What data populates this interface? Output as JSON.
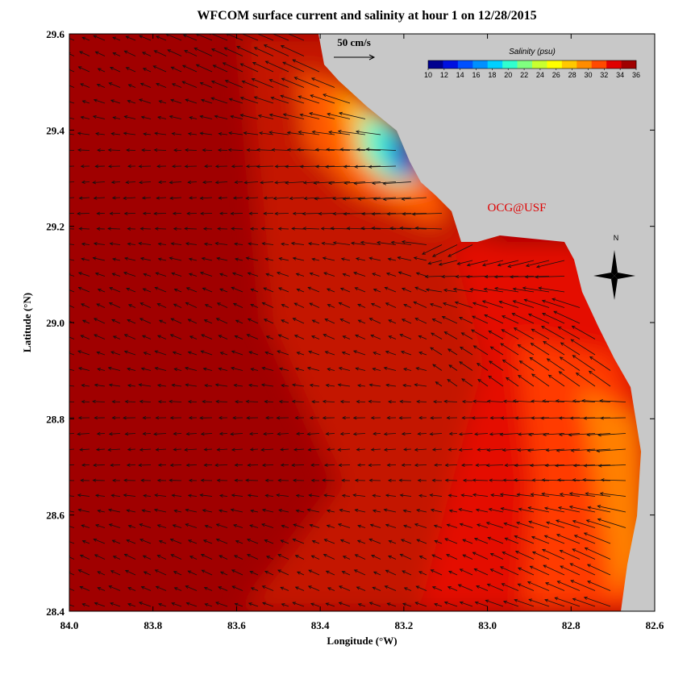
{
  "title": "WFCOM surface current and salinity at hour 1 on 12/28/2015",
  "x_axis": {
    "label": "Longitude (°W)",
    "lim": [
      84,
      82.6
    ],
    "ticks": [
      {
        "value": 84,
        "label": "84.0"
      },
      83.8,
      83.6,
      83.4,
      83.2,
      {
        "value": 83,
        "label": "83.0"
      },
      82.8,
      82.6
    ]
  },
  "y_axis": {
    "label": "Latitude (°N)",
    "lim": [
      28.4,
      29.6
    ],
    "ticks": [
      28.4,
      28.6,
      28.8,
      {
        "value": 29,
        "label": "29.0"
      },
      29.2,
      29.4,
      29.6
    ]
  },
  "colorbar": {
    "label": "Salinity (psu)",
    "lim": [
      10,
      36
    ],
    "ticks": [
      10,
      12,
      14,
      16,
      18,
      20,
      22,
      24,
      26,
      28,
      30,
      32,
      34,
      36
    ],
    "colors": [
      "#00008f",
      "#0010e0",
      "#0050ff",
      "#0090ff",
      "#00d0ff",
      "#30ffd0",
      "#80ff80",
      "#c8ff30",
      "#ffff00",
      "#ffc800",
      "#ff8c00",
      "#ff4a00",
      "#e00000",
      "#a00000"
    ]
  },
  "scale_label": "50 cm/s",
  "credit": "OCG@USF",
  "compass": "N"
}
